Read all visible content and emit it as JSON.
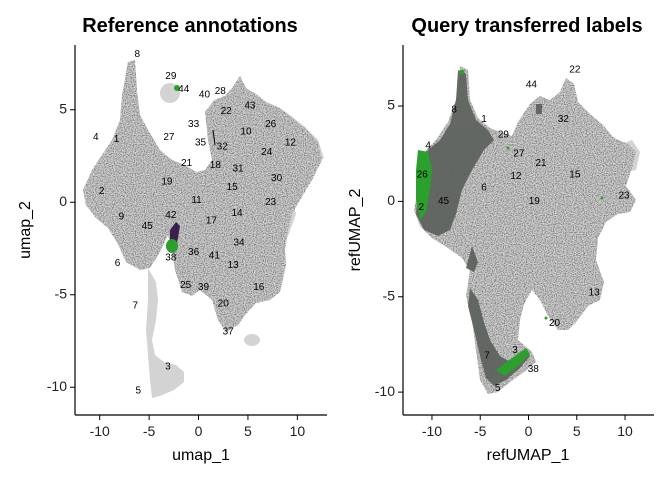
{
  "chart_data": [
    {
      "type": "scatter",
      "title": "Reference annotations",
      "xlabel": "umap_1",
      "ylabel": "umap_2",
      "x_ticks": [
        -10,
        -5,
        0,
        5,
        10
      ],
      "y_ticks": [
        5,
        0,
        -5,
        -10
      ],
      "xlim": [
        -12.5,
        13.0
      ],
      "ylim": [
        -11.5,
        8.5
      ],
      "grid": false,
      "colors": {
        "background_cells": "#d3d3d3",
        "highlight_a": "#2ca02c",
        "highlight_b": "#3b1f4f"
      },
      "cluster_labels": [
        {
          "text": "8",
          "x": -6.2,
          "y": 8.0
        },
        {
          "text": "29",
          "x": -2.8,
          "y": 6.8
        },
        {
          "text": "44",
          "x": -1.5,
          "y": 6.1
        },
        {
          "text": "40",
          "x": 0.6,
          "y": 5.8
        },
        {
          "text": "28",
          "x": 2.2,
          "y": 6.0
        },
        {
          "text": "22",
          "x": 2.8,
          "y": 4.9
        },
        {
          "text": "43",
          "x": 5.2,
          "y": 5.2
        },
        {
          "text": "33",
          "x": -0.5,
          "y": 4.2
        },
        {
          "text": "26",
          "x": 7.3,
          "y": 4.2
        },
        {
          "text": "10",
          "x": 4.8,
          "y": 3.8
        },
        {
          "text": "12",
          "x": 9.3,
          "y": 3.2
        },
        {
          "text": "4",
          "x": -10.4,
          "y": 3.5
        },
        {
          "text": "1",
          "x": -8.3,
          "y": 3.4
        },
        {
          "text": "27",
          "x": -3.0,
          "y": 3.5
        },
        {
          "text": "35",
          "x": 0.2,
          "y": 3.2
        },
        {
          "text": "32",
          "x": 2.4,
          "y": 3.0
        },
        {
          "text": "24",
          "x": 6.9,
          "y": 2.7
        },
        {
          "text": "21",
          "x": -1.2,
          "y": 2.1
        },
        {
          "text": "18",
          "x": 1.7,
          "y": 2.0
        },
        {
          "text": "31",
          "x": 4.0,
          "y": 1.8
        },
        {
          "text": "30",
          "x": 7.9,
          "y": 1.3
        },
        {
          "text": "19",
          "x": -3.2,
          "y": 1.1
        },
        {
          "text": "15",
          "x": 3.4,
          "y": 0.8
        },
        {
          "text": "2",
          "x": -9.8,
          "y": 0.6
        },
        {
          "text": "11",
          "x": -0.2,
          "y": 0.1
        },
        {
          "text": "23",
          "x": 7.3,
          "y": 0.0
        },
        {
          "text": "9",
          "x": -7.8,
          "y": -0.8
        },
        {
          "text": "14",
          "x": 3.9,
          "y": -0.6
        },
        {
          "text": "42",
          "x": -2.8,
          "y": -0.7
        },
        {
          "text": "17",
          "x": 1.3,
          "y": -1.0
        },
        {
          "text": "45",
          "x": -5.2,
          "y": -1.3
        },
        {
          "text": "34",
          "x": 4.1,
          "y": -2.2
        },
        {
          "text": "6",
          "x": -8.2,
          "y": -3.3
        },
        {
          "text": "38",
          "x": -2.8,
          "y": -3.0
        },
        {
          "text": "36",
          "x": -0.5,
          "y": -2.7
        },
        {
          "text": "41",
          "x": 1.6,
          "y": -2.9
        },
        {
          "text": "13",
          "x": 3.5,
          "y": -3.4
        },
        {
          "text": "25",
          "x": -1.3,
          "y": -4.5
        },
        {
          "text": "39",
          "x": 0.5,
          "y": -4.6
        },
        {
          "text": "16",
          "x": 6.1,
          "y": -4.6
        },
        {
          "text": "7",
          "x": -6.4,
          "y": -5.6
        },
        {
          "text": "20",
          "x": 2.5,
          "y": -5.5
        },
        {
          "text": "37",
          "x": 3.0,
          "y": -7.0
        },
        {
          "text": "3",
          "x": -3.1,
          "y": -8.9
        },
        {
          "text": "5",
          "x": -6.1,
          "y": -10.2
        }
      ]
    },
    {
      "type": "scatter",
      "title": "Query transferred labels",
      "xlabel": "refUMAP_1",
      "ylabel": "refUMAP_2",
      "x_ticks": [
        -10,
        -5,
        0,
        5,
        10
      ],
      "y_ticks": [
        5,
        0,
        -5,
        -10
      ],
      "xlim": [
        -13.0,
        13.0
      ],
      "ylim": [
        -11.2,
        8.2
      ],
      "grid": false,
      "colors": {
        "background_cells": "#d3d3d3",
        "query_cells": "#5a5f5a",
        "highlight": "#2ca02c"
      },
      "cluster_labels": [
        {
          "text": "22",
          "x": 4.8,
          "y": 6.9
        },
        {
          "text": "44",
          "x": 0.3,
          "y": 6.1
        },
        {
          "text": "8",
          "x": -7.7,
          "y": 4.8
        },
        {
          "text": "1",
          "x": -4.6,
          "y": 4.3
        },
        {
          "text": "32",
          "x": 3.6,
          "y": 4.3
        },
        {
          "text": "29",
          "x": -2.6,
          "y": 3.5
        },
        {
          "text": "4",
          "x": -10.4,
          "y": 2.9
        },
        {
          "text": "27",
          "x": -1.0,
          "y": 2.5
        },
        {
          "text": "21",
          "x": 1.3,
          "y": 2.0
        },
        {
          "text": "26",
          "x": -11.0,
          "y": 1.4
        },
        {
          "text": "12",
          "x": -1.3,
          "y": 1.3
        },
        {
          "text": "15",
          "x": 4.8,
          "y": 1.4
        },
        {
          "text": "6",
          "x": -4.6,
          "y": 0.7
        },
        {
          "text": "19",
          "x": 0.6,
          "y": 0.0
        },
        {
          "text": "23",
          "x": 9.9,
          "y": 0.3
        },
        {
          "text": "2",
          "x": -11.1,
          "y": -0.3
        },
        {
          "text": "45",
          "x": -8.8,
          "y": 0.0
        },
        {
          "text": "13",
          "x": 6.8,
          "y": -4.8
        },
        {
          "text": "20",
          "x": 2.7,
          "y": -6.4
        },
        {
          "text": "3",
          "x": -1.4,
          "y": -7.8
        },
        {
          "text": "7",
          "x": -4.3,
          "y": -8.1
        },
        {
          "text": "38",
          "x": 0.5,
          "y": -8.8
        },
        {
          "text": "5",
          "x": -3.2,
          "y": -9.8
        }
      ]
    }
  ]
}
